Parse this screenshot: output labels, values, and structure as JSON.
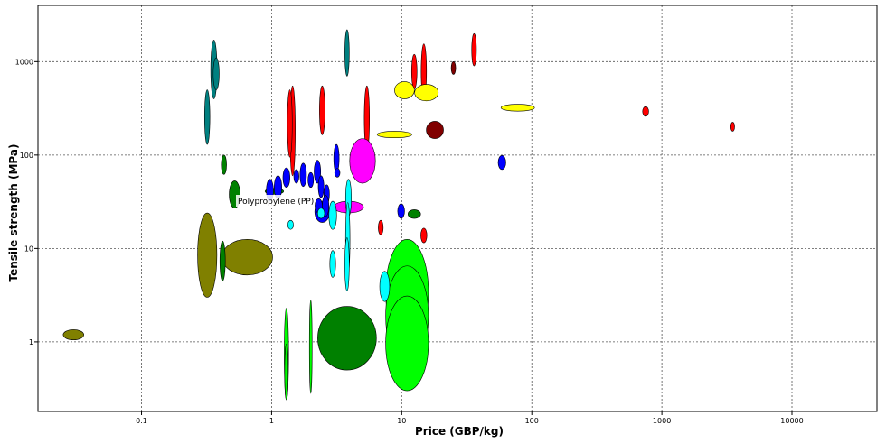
{
  "chart_data": {
    "type": "scatter",
    "xlabel": "Price (GBP/kg)",
    "ylabel": "Tensile strength (MPa)",
    "xscale": "log",
    "yscale": "log",
    "xlim": [
      0.016,
      45000
    ],
    "ylim": [
      0.18,
      4000
    ],
    "grid": true,
    "xticks": [
      0.1,
      1,
      10,
      100,
      1000,
      10000
    ],
    "xtick_labels": [
      "0.1",
      "1",
      "10",
      "100",
      "1000",
      "10000"
    ],
    "yticks": [
      1,
      10,
      100,
      1000
    ],
    "ytick_labels": [
      "1",
      "10",
      "100",
      "1000"
    ],
    "annotation": {
      "text": "Polypropylene (PP)",
      "x": 1.6,
      "y": 35
    },
    "bubbles": [
      {
        "x": 0.03,
        "x1": 0.025,
        "x2": 0.036,
        "y1": 1.05,
        "y2": 1.35,
        "color": "#808000"
      },
      {
        "x": 0.32,
        "x1": 0.27,
        "x2": 0.38,
        "y1": 3,
        "y2": 24,
        "color": "#808000"
      },
      {
        "x": 0.65,
        "x1": 0.42,
        "x2": 1.03,
        "y1": 5.2,
        "y2": 12.5,
        "color": "#808000"
      },
      {
        "x": 0.36,
        "x1": 0.34,
        "x2": 0.38,
        "y1": 400,
        "y2": 1700,
        "color": "#008080"
      },
      {
        "x": 0.375,
        "x1": 0.355,
        "x2": 0.395,
        "y1": 500,
        "y2": 1100,
        "color": "#008080"
      },
      {
        "x": 0.32,
        "x1": 0.305,
        "x2": 0.335,
        "y1": 130,
        "y2": 500,
        "color": "#008080"
      },
      {
        "x": 3.8,
        "x1": 3.65,
        "x2": 3.95,
        "y1": 700,
        "y2": 2200,
        "color": "#008080"
      },
      {
        "x": 0.43,
        "x1": 0.41,
        "x2": 0.45,
        "y1": 62,
        "y2": 100,
        "color": "#008000"
      },
      {
        "x": 0.42,
        "x1": 0.4,
        "x2": 0.44,
        "y1": 4.5,
        "y2": 12,
        "color": "#008000"
      },
      {
        "x": 0.52,
        "x1": 0.47,
        "x2": 0.57,
        "y1": 27,
        "y2": 53,
        "color": "#008000"
      },
      {
        "x": 1.05,
        "x1": 0.9,
        "x2": 1.25,
        "y1": 38,
        "y2": 44,
        "color": "#008000"
      },
      {
        "x": 3.8,
        "x1": 2.3,
        "x2": 6.5,
        "y1": 0.5,
        "y2": 2.4,
        "color": "#008000"
      },
      {
        "x": 1.3,
        "x1": 1.25,
        "x2": 1.35,
        "y1": 0.24,
        "y2": 2.3,
        "color": "#00ff00"
      },
      {
        "x": 1.3,
        "x1": 1.26,
        "x2": 1.34,
        "y1": 0.24,
        "y2": 0.95,
        "color": "#00ff00"
      },
      {
        "x": 2.0,
        "x1": 1.96,
        "x2": 2.04,
        "y1": 0.28,
        "y2": 2.8,
        "color": "#00ff00"
      },
      {
        "x": 11,
        "x1": 7.5,
        "x2": 16,
        "y1": 0.93,
        "y2": 12.5,
        "color": "#00ff00"
      },
      {
        "x": 11,
        "x1": 7.5,
        "x2": 16,
        "y1": 0.55,
        "y2": 6.5,
        "color": "#00ff00"
      },
      {
        "x": 11,
        "x1": 7.5,
        "x2": 16,
        "y1": 0.3,
        "y2": 3.1,
        "color": "#00ff00"
      },
      {
        "x": 12.5,
        "x1": 11.2,
        "x2": 14,
        "y1": 21,
        "y2": 26,
        "color": "#008000"
      },
      {
        "x": 1.45,
        "x1": 1.38,
        "x2": 1.52,
        "y1": 60,
        "y2": 550,
        "color": "#ff0000"
      },
      {
        "x": 1.38,
        "x1": 1.32,
        "x2": 1.44,
        "y1": 95,
        "y2": 500,
        "color": "#ff0000"
      },
      {
        "x": 2.45,
        "x1": 2.33,
        "x2": 2.57,
        "y1": 165,
        "y2": 550,
        "color": "#ff0000"
      },
      {
        "x": 5.4,
        "x1": 5.15,
        "x2": 5.65,
        "y1": 110,
        "y2": 550,
        "color": "#ff0000"
      },
      {
        "x": 12.5,
        "x1": 11.9,
        "x2": 13.1,
        "y1": 510,
        "y2": 1200,
        "color": "#ff0000"
      },
      {
        "x": 14.8,
        "x1": 14.1,
        "x2": 15.5,
        "y1": 400,
        "y2": 1550,
        "color": "#ff0000"
      },
      {
        "x": 36,
        "x1": 34.5,
        "x2": 37.5,
        "y1": 900,
        "y2": 2000,
        "color": "#ff0000"
      },
      {
        "x": 25,
        "x1": 24,
        "x2": 26,
        "y1": 730,
        "y2": 1000,
        "color": "#800000"
      },
      {
        "x": 18,
        "x1": 15.5,
        "x2": 21,
        "y1": 150,
        "y2": 230,
        "color": "#800000"
      },
      {
        "x": 14.8,
        "x1": 14,
        "x2": 15.6,
        "y1": 11.5,
        "y2": 16.5,
        "color": "#ff0000"
      },
      {
        "x": 6.9,
        "x1": 6.6,
        "x2": 7.2,
        "y1": 14,
        "y2": 20,
        "color": "#ff0000"
      },
      {
        "x": 750,
        "x1": 710,
        "x2": 790,
        "y1": 260,
        "y2": 330,
        "color": "#ff0000"
      },
      {
        "x": 3500,
        "x1": 3380,
        "x2": 3620,
        "y1": 180,
        "y2": 225,
        "color": "#ff0000"
      },
      {
        "x": 10.5,
        "x1": 8.8,
        "x2": 12.5,
        "y1": 400,
        "y2": 610,
        "color": "#ffff00"
      },
      {
        "x": 15.5,
        "x1": 12.5,
        "x2": 19,
        "y1": 380,
        "y2": 570,
        "color": "#ffff00"
      },
      {
        "x": 8.8,
        "x1": 6.5,
        "x2": 12,
        "y1": 153,
        "y2": 180,
        "color": "#ffff00"
      },
      {
        "x": 78,
        "x1": 58,
        "x2": 105,
        "y1": 295,
        "y2": 350,
        "color": "#ffff00"
      },
      {
        "x": 5.0,
        "x1": 4.0,
        "x2": 6.3,
        "y1": 50,
        "y2": 150,
        "color": "#ff00ff"
      },
      {
        "x": 3.9,
        "x1": 3.0,
        "x2": 5.1,
        "y1": 24,
        "y2": 32,
        "color": "#ff00ff"
      },
      {
        "x": 3.15,
        "x1": 3.0,
        "x2": 3.3,
        "y1": 65,
        "y2": 130,
        "color": "#0000ff"
      },
      {
        "x": 3.2,
        "x1": 3.05,
        "x2": 3.35,
        "y1": 58,
        "y2": 72,
        "color": "#0000ff"
      },
      {
        "x": 1.12,
        "x1": 1.05,
        "x2": 1.2,
        "y1": 34,
        "y2": 60,
        "color": "#0000ff"
      },
      {
        "x": 0.97,
        "x1": 0.91,
        "x2": 1.03,
        "y1": 32,
        "y2": 55,
        "color": "#0000ff"
      },
      {
        "x": 1.3,
        "x1": 1.22,
        "x2": 1.38,
        "y1": 45,
        "y2": 73,
        "color": "#0000ff"
      },
      {
        "x": 1.55,
        "x1": 1.48,
        "x2": 1.62,
        "y1": 50,
        "y2": 70,
        "color": "#0000ff"
      },
      {
        "x": 1.75,
        "x1": 1.65,
        "x2": 1.85,
        "y1": 46,
        "y2": 82,
        "color": "#0000ff"
      },
      {
        "x": 2.25,
        "x1": 2.12,
        "x2": 2.38,
        "y1": 50,
        "y2": 88,
        "color": "#0000ff"
      },
      {
        "x": 2.0,
        "x1": 1.9,
        "x2": 2.1,
        "y1": 45,
        "y2": 65,
        "color": "#0000ff"
      },
      {
        "x": 2.65,
        "x1": 2.52,
        "x2": 2.78,
        "y1": 30,
        "y2": 48,
        "color": "#0000ff"
      },
      {
        "x": 2.4,
        "x1": 2.28,
        "x2": 2.52,
        "y1": 35,
        "y2": 60,
        "color": "#0000ff"
      },
      {
        "x": 2.45,
        "x1": 2.15,
        "x2": 2.8,
        "y1": 19,
        "y2": 32,
        "color": "#0000ff"
      },
      {
        "x": 2.6,
        "x1": 2.45,
        "x2": 2.75,
        "y1": 22,
        "y2": 37,
        "color": "#0000ff"
      },
      {
        "x": 2.3,
        "x1": 2.15,
        "x2": 2.45,
        "y1": 24,
        "y2": 34,
        "color": "#0000ff"
      },
      {
        "x": 9.9,
        "x1": 9.3,
        "x2": 10.5,
        "y1": 21,
        "y2": 30,
        "color": "#0000ff"
      },
      {
        "x": 59,
        "x1": 55,
        "x2": 63,
        "y1": 70,
        "y2": 99,
        "color": "#0000ff"
      },
      {
        "x": 1.4,
        "x1": 1.33,
        "x2": 1.47,
        "y1": 16,
        "y2": 20,
        "color": "#00ffff"
      },
      {
        "x": 2.4,
        "x1": 2.25,
        "x2": 2.55,
        "y1": 21,
        "y2": 27,
        "color": "#00ffff"
      },
      {
        "x": 2.95,
        "x1": 2.75,
        "x2": 3.15,
        "y1": 16,
        "y2": 32,
        "color": "#00ffff"
      },
      {
        "x": 3.9,
        "x1": 3.7,
        "x2": 4.1,
        "y1": 22,
        "y2": 55,
        "color": "#00ffff"
      },
      {
        "x": 3.85,
        "x1": 3.7,
        "x2": 4.0,
        "y1": 5,
        "y2": 31,
        "color": "#00ffff"
      },
      {
        "x": 3.8,
        "x1": 3.65,
        "x2": 3.95,
        "y1": 3.5,
        "y2": 13,
        "color": "#00ffff"
      },
      {
        "x": 2.95,
        "x1": 2.8,
        "x2": 3.1,
        "y1": 4.9,
        "y2": 9.5,
        "color": "#00ffff"
      },
      {
        "x": 7.4,
        "x1": 6.8,
        "x2": 8.1,
        "y1": 2.7,
        "y2": 5.7,
        "color": "#00ffff"
      }
    ]
  }
}
